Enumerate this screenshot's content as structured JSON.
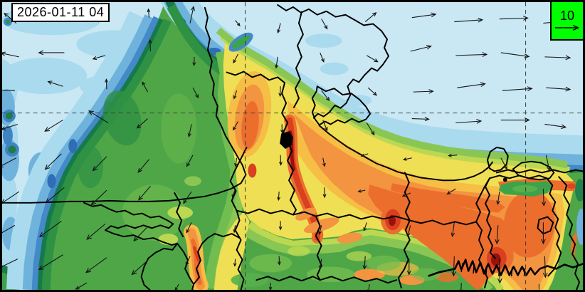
{
  "title_box": {
    "timestamp": "2026-01-11 04"
  },
  "legend": {
    "reference_value": "10",
    "box_color": "#00ff00",
    "arrow_direction": "right"
  },
  "map": {
    "background_color": "#C9E8F4",
    "gridlines": {
      "style": "dashed",
      "color": "#3a3a3a",
      "horizontal_y": [
        158
      ],
      "vertical_x": [
        344,
        741
      ]
    },
    "colormap": [
      "#C9E8F4",
      "#A9DAEE",
      "#6FB2DC",
      "#4489C8",
      "#2F6EB4",
      "#157A4B",
      "#2F9143",
      "#3DA34B",
      "#4FA647",
      "#57B04A",
      "#72BD4F",
      "#8AC653",
      "#BBD852",
      "#EFDF54",
      "#F6BE45",
      "#F29440",
      "#EC6E2D",
      "#D8401F",
      "#96120C"
    ],
    "boundary_color": "#000000",
    "wind_arrow_color": "#161616",
    "wind_arrows": [
      [
        20,
        30,
        140,
        22
      ],
      [
        84,
        24,
        182,
        30
      ],
      [
        150,
        28,
        172,
        18
      ],
      [
        208,
        22,
        95,
        12
      ],
      [
        266,
        30,
        78,
        24
      ],
      [
        330,
        26,
        310,
        10
      ],
      [
        394,
        30,
        255,
        14
      ],
      [
        452,
        24,
        300,
        16
      ],
      [
        514,
        28,
        40,
        20
      ],
      [
        580,
        22,
        8,
        34
      ],
      [
        640,
        28,
        4,
        40
      ],
      [
        704,
        24,
        2,
        40
      ],
      [
        766,
        30,
        6,
        30
      ],
      [
        24,
        78,
        168,
        26
      ],
      [
        88,
        72,
        180,
        36
      ],
      [
        146,
        76,
        196,
        18
      ],
      [
        210,
        70,
        92,
        16
      ],
      [
        272,
        78,
        268,
        12
      ],
      [
        334,
        74,
        242,
        14
      ],
      [
        390,
        78,
        262,
        16
      ],
      [
        450,
        72,
        292,
        14
      ],
      [
        516,
        76,
        330,
        18
      ],
      [
        578,
        70,
        14,
        30
      ],
      [
        642,
        76,
        2,
        44
      ],
      [
        706,
        72,
        352,
        40
      ],
      [
        768,
        78,
        358,
        36
      ],
      [
        18,
        126,
        178,
        30
      ],
      [
        86,
        120,
        162,
        22
      ],
      [
        148,
        124,
        92,
        14
      ],
      [
        206,
        128,
        118,
        16
      ],
      [
        270,
        122,
        298,
        16
      ],
      [
        332,
        126,
        252,
        12
      ],
      [
        394,
        120,
        268,
        14
      ],
      [
        452,
        126,
        308,
        18
      ],
      [
        518,
        122,
        318,
        16
      ],
      [
        582,
        128,
        2,
        28
      ],
      [
        644,
        122,
        8,
        40
      ],
      [
        708,
        126,
        4,
        42
      ],
      [
        770,
        122,
        356,
        34
      ],
      [
        22,
        174,
        198,
        24
      ],
      [
        86,
        168,
        212,
        30
      ],
      [
        150,
        172,
        148,
        32
      ],
      [
        206,
        166,
        222,
        20
      ],
      [
        268,
        174,
        258,
        18
      ],
      [
        334,
        170,
        240,
        14
      ],
      [
        396,
        174,
        272,
        12
      ],
      [
        454,
        168,
        292,
        16
      ],
      [
        516,
        172,
        302,
        20
      ],
      [
        580,
        166,
        358,
        24
      ],
      [
        642,
        172,
        4,
        36
      ],
      [
        706,
        168,
        0,
        40
      ],
      [
        768,
        174,
        352,
        30
      ],
      [
        20,
        222,
        208,
        28
      ],
      [
        84,
        216,
        224,
        32
      ],
      [
        148,
        220,
        226,
        28
      ],
      [
        208,
        224,
        230,
        24
      ],
      [
        270,
        218,
        242,
        18
      ],
      [
        332,
        222,
        262,
        12
      ],
      [
        394,
        218,
        272,
        14
      ],
      [
        454,
        222,
        282,
        12
      ],
      [
        518,
        216,
        200,
        10
      ],
      [
        580,
        222,
        192,
        12
      ],
      [
        644,
        218,
        184,
        12
      ],
      [
        706,
        222,
        298,
        18
      ],
      [
        770,
        218,
        282,
        22
      ],
      [
        24,
        270,
        214,
        30
      ],
      [
        88,
        264,
        220,
        34
      ],
      [
        148,
        268,
        224,
        30
      ],
      [
        210,
        262,
        230,
        26
      ],
      [
        268,
        270,
        236,
        20
      ],
      [
        330,
        266,
        252,
        13
      ],
      [
        392,
        270,
        266,
        12
      ],
      [
        456,
        264,
        272,
        14
      ],
      [
        514,
        268,
        192,
        10
      ],
      [
        578,
        272,
        202,
        12
      ],
      [
        642,
        266,
        212,
        14
      ],
      [
        704,
        270,
        262,
        18
      ],
      [
        766,
        266,
        272,
        24
      ],
      [
        18,
        318,
        210,
        34
      ],
      [
        84,
        312,
        216,
        38
      ],
      [
        146,
        316,
        220,
        34
      ],
      [
        206,
        320,
        226,
        28
      ],
      [
        268,
        314,
        244,
        16
      ],
      [
        330,
        318,
        262,
        10
      ],
      [
        394,
        312,
        270,
        12
      ],
      [
        452,
        318,
        256,
        13
      ],
      [
        516,
        314,
        252,
        12
      ],
      [
        578,
        318,
        256,
        16
      ],
      [
        640,
        314,
        262,
        20
      ],
      [
        702,
        318,
        266,
        26
      ],
      [
        766,
        314,
        270,
        30
      ],
      [
        22,
        366,
        206,
        36
      ],
      [
        86,
        360,
        212,
        40
      ],
      [
        148,
        364,
        216,
        36
      ],
      [
        206,
        368,
        222,
        30
      ],
      [
        266,
        362,
        246,
        14
      ],
      [
        330,
        366,
        266,
        10
      ],
      [
        392,
        362,
        272,
        12
      ],
      [
        452,
        366,
        262,
        14
      ],
      [
        514,
        362,
        266,
        18
      ],
      [
        576,
        366,
        270,
        22
      ],
      [
        640,
        362,
        268,
        28
      ],
      [
        704,
        366,
        271,
        34
      ],
      [
        768,
        362,
        272,
        30
      ],
      [
        120,
        400,
        210,
        18
      ],
      [
        250,
        402,
        240,
        10
      ],
      [
        380,
        400,
        268,
        10
      ],
      [
        520,
        402,
        262,
        12
      ],
      [
        650,
        400,
        268,
        14
      ],
      [
        760,
        402,
        270,
        16
      ]
    ]
  }
}
